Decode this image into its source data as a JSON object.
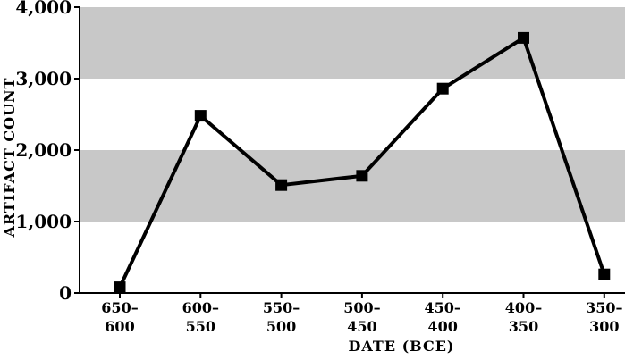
{
  "chart_data": {
    "type": "line",
    "title": "",
    "xlabel": "DATE (BCE)",
    "ylabel": "ARTIFACT COUNT",
    "categories": [
      [
        "650–",
        "600"
      ],
      [
        "600–",
        "550"
      ],
      [
        "550–",
        "500"
      ],
      [
        "500–",
        "450"
      ],
      [
        "450–",
        "400"
      ],
      [
        "400–",
        "350"
      ],
      [
        "350–",
        "300"
      ]
    ],
    "series": [
      {
        "values": [
          80,
          2480,
          1510,
          1640,
          2860,
          3570,
          260
        ],
        "color": "#000000",
        "marker": "square"
      }
    ],
    "ylim": [
      0,
      4000
    ],
    "yticks": [
      0,
      1000,
      2000,
      3000,
      4000
    ],
    "ytick_labels": [
      "0",
      "1,000",
      "2,000",
      "3,000",
      "4,000"
    ],
    "bands": [
      [
        1000,
        2000
      ],
      [
        3000,
        4000
      ]
    ],
    "band_color": "#c8c8c8",
    "legend": "none",
    "grid": false
  }
}
